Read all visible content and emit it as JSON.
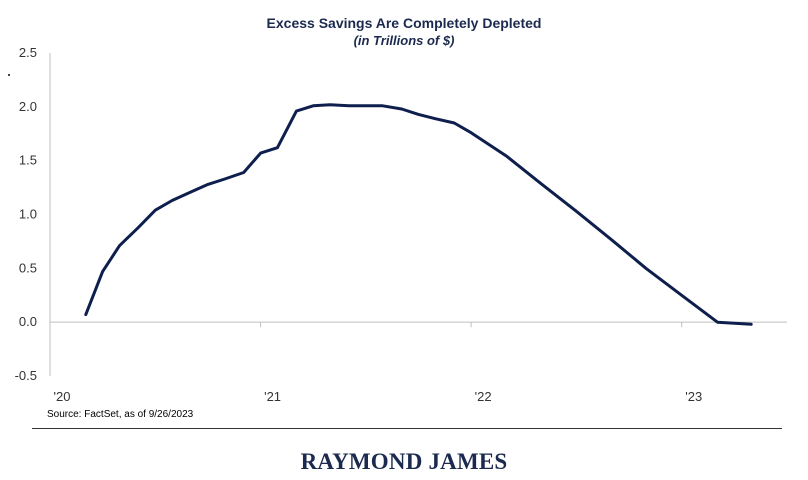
{
  "chart_data": {
    "type": "line",
    "title": "Excess Savings Are Completely Depleted",
    "subtitle": "(in Trillions of $)",
    "xlabel": "",
    "ylabel": "",
    "ylim": [
      -0.5,
      2.5
    ],
    "xlim": [
      2020.0,
      2023.5
    ],
    "yticks": [
      2.5,
      2.0,
      1.5,
      1.0,
      0.5,
      0.0,
      -0.5
    ],
    "ytick_labels": [
      "2.5",
      "2.0",
      "1.5",
      "1.0",
      "0.5",
      "0.0",
      "-0.5"
    ],
    "xticks": [
      2020,
      2021,
      2022,
      2023
    ],
    "xtick_labels": [
      "'20",
      "'21",
      "'22",
      "'23"
    ],
    "grid": false,
    "line_color": "#0e1f4d",
    "series": [
      {
        "x": [
          2020.17,
          2020.25,
          2020.33,
          2020.42,
          2020.5,
          2020.58,
          2020.67,
          2020.75,
          2020.83,
          2020.92,
          2021.0,
          2021.08,
          2021.17,
          2021.25,
          2021.33,
          2021.42,
          2021.5,
          2021.58,
          2021.67,
          2021.75,
          2021.83,
          2021.92,
          2022.0,
          2022.17,
          2022.33,
          2022.5,
          2022.67,
          2022.83,
          2023.0,
          2023.17,
          2023.33
        ],
        "y": [
          0.07,
          0.47,
          0.71,
          0.88,
          1.04,
          1.13,
          1.21,
          1.28,
          1.33,
          1.39,
          1.57,
          1.62,
          1.96,
          2.01,
          2.02,
          2.01,
          2.01,
          2.01,
          1.98,
          1.93,
          1.89,
          1.85,
          1.76,
          1.54,
          1.29,
          1.03,
          0.76,
          0.5,
          0.25,
          0.0,
          -0.02
        ]
      }
    ]
  },
  "source": "Source: FactSet, as of 9/26/2023",
  "logo": "RAYMOND JAMES"
}
